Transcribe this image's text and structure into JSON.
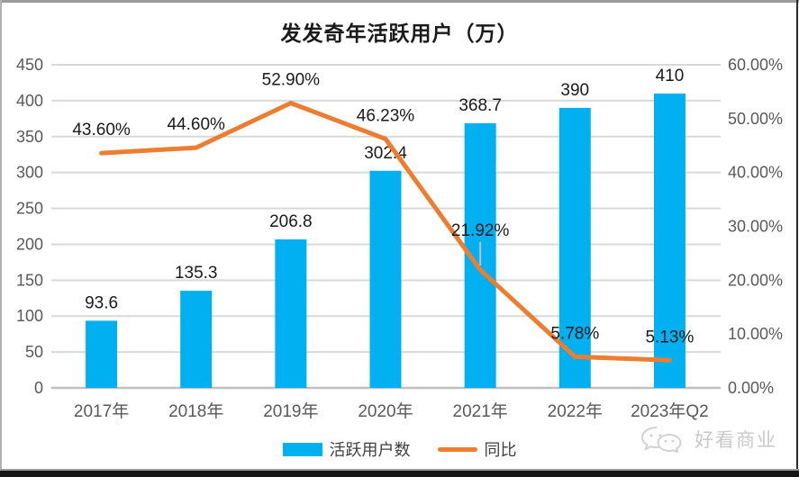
{
  "title": "发发奇年活跃用户（万）",
  "legend": {
    "items": [
      {
        "label": "活跃用户数",
        "marker": "bar-swatch",
        "color": "#00B0F0"
      },
      {
        "label": "同比",
        "marker": "line-swatch",
        "color": "#ED7D31"
      }
    ]
  },
  "watermark": {
    "text": "好看商业",
    "icon": "wechat-bubbles-icon"
  },
  "colors": {
    "bar": "#00B0F0",
    "line": "#ED7D31",
    "grid": "#D9D9D9",
    "zero_axis": "#BFBFBF",
    "axis_text": "#595959",
    "data_label_text": "#1a1a1a",
    "leader_line": "#BFBFBF"
  },
  "chart_data": {
    "type": "bar+line",
    "title": "发发奇年活跃用户（万）",
    "categories": [
      "2017年",
      "2018年",
      "2019年",
      "2020年",
      "2021年",
      "2022年",
      "2023年Q2"
    ],
    "series": [
      {
        "name": "活跃用户数",
        "type": "bar",
        "axis": "left",
        "values": [
          93.6,
          135.3,
          206.8,
          302.4,
          368.7,
          390,
          410
        ],
        "labels": [
          "93.6",
          "135.3",
          "206.8",
          "302.4",
          "368.7",
          "390",
          "410"
        ]
      },
      {
        "name": "同比",
        "type": "line",
        "axis": "right",
        "values": [
          43.6,
          44.6,
          52.9,
          46.23,
          21.92,
          5.78,
          5.13
        ],
        "labels": [
          "43.60%",
          "44.60%",
          "52.90%",
          "46.23%",
          "21.92%",
          "5.78%",
          "5.13%"
        ]
      }
    ],
    "left_axis": {
      "min": 0,
      "max": 450,
      "step": 50,
      "ticks": [
        "0",
        "50",
        "100",
        "150",
        "200",
        "250",
        "300",
        "350",
        "400",
        "450"
      ]
    },
    "right_axis": {
      "min": 0,
      "max": 60,
      "step": 10,
      "ticks": [
        "0.00%",
        "10.00%",
        "20.00%",
        "30.00%",
        "40.00%",
        "50.00%",
        "60.00%"
      ]
    },
    "grid": true,
    "legend_position": "bottom",
    "annotations": {
      "callout": {
        "series_index": 1,
        "point_index": 4,
        "leader_line": true
      }
    }
  }
}
